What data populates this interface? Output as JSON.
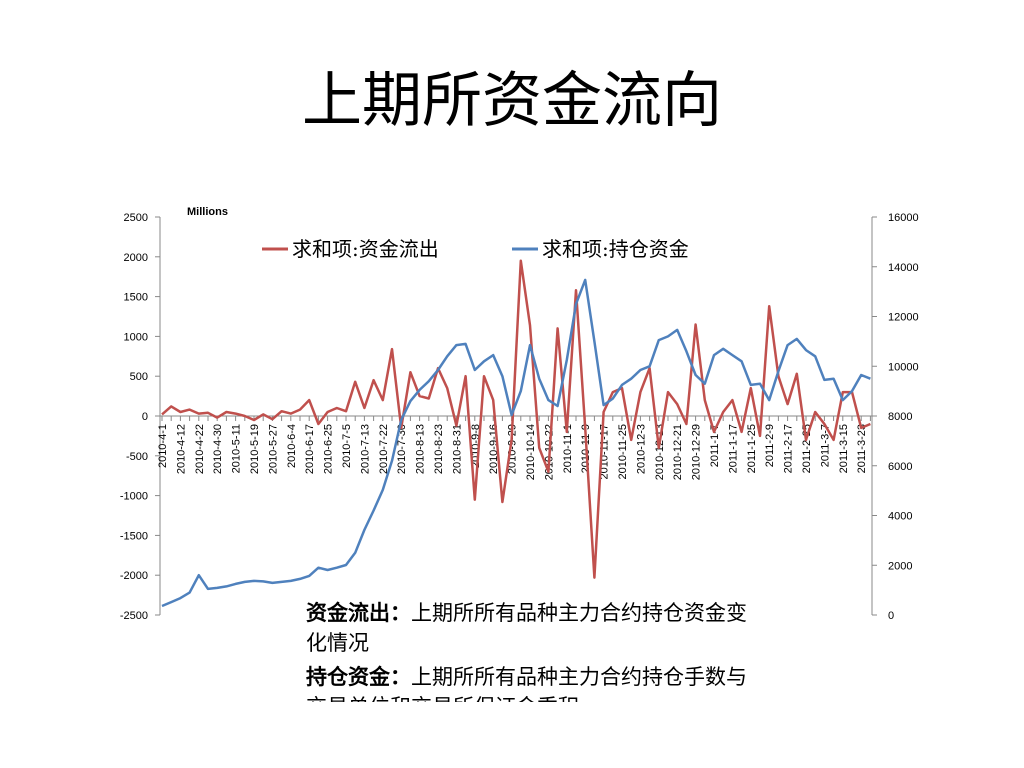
{
  "title": "上期所资金流向",
  "chart_data": {
    "type": "line",
    "y_label": "Millions",
    "categories": [
      "2010-4-1",
      null,
      "2010-4-12",
      null,
      "2010-4-22",
      null,
      "2010-4-30",
      null,
      "2010-5-11",
      null,
      "2010-5-19",
      null,
      "2010-5-27",
      null,
      "2010-6-4",
      null,
      "2010-6-17",
      null,
      "2010-6-25",
      null,
      "2010-7-5",
      null,
      "2010-7-13",
      null,
      "2010-7-22",
      null,
      "2010-7-30",
      null,
      "2010-8-13",
      null,
      "2010-8-23",
      null,
      "2010-8-31",
      null,
      "2010-9-8",
      null,
      "2010-9-16",
      null,
      "2010-9-29",
      null,
      "2010-10-14",
      null,
      "2010-10-22",
      null,
      "2010-11-1",
      null,
      "2010-11-9",
      null,
      "2010-11-17",
      null,
      "2010-11-25",
      null,
      "2010-12-3",
      null,
      "2010-12-13",
      null,
      "2010-12-21",
      null,
      "2010-12-29",
      null,
      "2011-1-7",
      null,
      "2011-1-17",
      null,
      "2011-1-25",
      null,
      "2011-2-9",
      null,
      "2011-2-17",
      null,
      "2011-2-25",
      null,
      "2011-3-7",
      null,
      "2011-3-15",
      null,
      "2011-3-23",
      null
    ],
    "series": [
      {
        "name": "求和项:资金流出",
        "color": "#c0504d",
        "values": [
          20,
          120,
          50,
          80,
          30,
          40,
          -20,
          50,
          30,
          0,
          -50,
          20,
          -40,
          60,
          30,
          80,
          200,
          -100,
          50,
          100,
          60,
          430,
          100,
          450,
          200,
          840,
          -150,
          550,
          250,
          220,
          600,
          350,
          -120,
          500,
          -1050,
          500,
          200,
          -1080,
          -300,
          1950,
          1140,
          -400,
          -700,
          1100,
          -200,
          1580,
          -150,
          -2030,
          50,
          300,
          350,
          -300,
          300,
          600,
          -400,
          300,
          150,
          -100,
          1150,
          200,
          -200,
          50,
          200,
          -200,
          350,
          -250,
          1380,
          500,
          150,
          530,
          -300,
          50,
          -100,
          -300,
          300,
          300,
          -150,
          -100
        ]
      },
      {
        "name": "求和项:持仓资金",
        "color": "#4f81bd",
        "axis": "y2",
        "values": [
          360,
          520,
          680,
          900,
          1600,
          1050,
          1090,
          1150,
          1250,
          1330,
          1370,
          1350,
          1290,
          1330,
          1370,
          1450,
          1570,
          1900,
          1810,
          1900,
          2010,
          2500,
          3420,
          4200,
          5030,
          6200,
          7840,
          8600,
          9050,
          9400,
          9850,
          10400,
          10850,
          10900,
          9850,
          10200,
          10450,
          9600,
          8040,
          9000,
          10850,
          9500,
          8640,
          8400,
          10250,
          12500,
          13470,
          11000,
          8440,
          8700,
          9250,
          9500,
          9850,
          10000,
          11050,
          11200,
          11460,
          10600,
          9650,
          9300,
          10450,
          10700,
          10450,
          10200,
          9250,
          9300,
          8640,
          9800,
          10850,
          11100,
          10650,
          10400,
          9450,
          9500,
          8640,
          9000,
          9650,
          9500
        ]
      }
    ],
    "ylim": [
      -2500,
      2500
    ],
    "yticks": [
      -2500,
      -2000,
      -1500,
      -1000,
      -500,
      0,
      500,
      1000,
      1500,
      2000,
      2500
    ],
    "y2lim": [
      0,
      16000
    ],
    "y2ticks": [
      0,
      2000,
      4000,
      6000,
      8000,
      10000,
      12000,
      14000,
      16000
    ],
    "legend": "top"
  },
  "notes": [
    {
      "term": "资金流出：",
      "text": "上期所所有品种主力合约持仓资金变化情况"
    },
    {
      "term": "持仓资金：",
      "text": "上期所所有品种主力合约持仓手数与交易单位和交易所保证金乘积"
    }
  ]
}
